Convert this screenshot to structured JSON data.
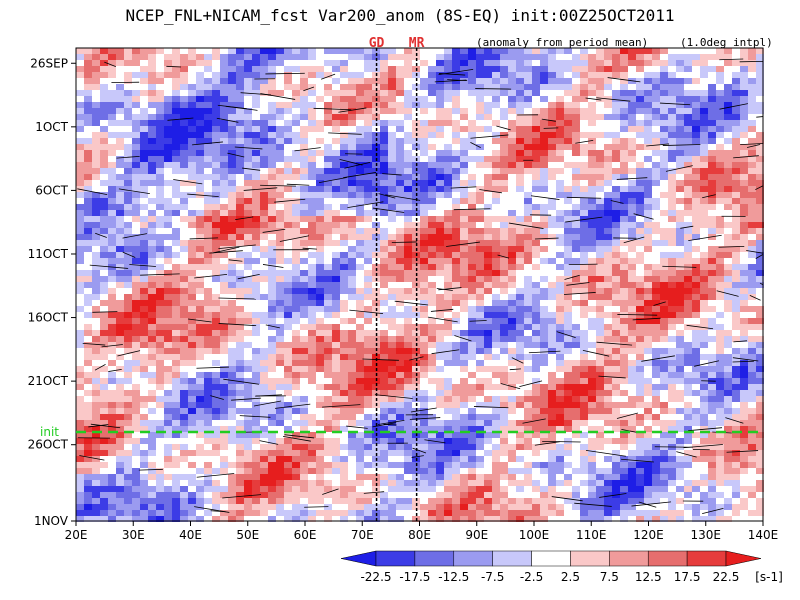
{
  "chart_data": {
    "type": "heatmap",
    "title": "NCEP_FNL+NICAM_fcst Var200_anom (8S-EQ) init:00Z25OCT2011",
    "annotations": {
      "period_note": "(anomaly from period mean)",
      "interp_note": "(1.0deg intpl)",
      "marker_1": "GD",
      "marker_2": "MR",
      "init_label": "init"
    },
    "x_ticks": [
      "20E",
      "30E",
      "40E",
      "50E",
      "60E",
      "70E",
      "80E",
      "90E",
      "100E",
      "110E",
      "120E",
      "130E",
      "140E"
    ],
    "x_values": [
      20,
      30,
      40,
      50,
      60,
      70,
      80,
      90,
      100,
      110,
      120,
      130,
      140
    ],
    "xlim": [
      20,
      140
    ],
    "y_ticks": [
      "26SEP",
      "1OCT",
      "6OCT",
      "11OCT",
      "16OCT",
      "21OCT",
      "26OCT",
      "1NOV"
    ],
    "y_values": [
      0,
      5,
      10,
      15,
      20,
      25,
      30,
      36
    ],
    "ylim": [
      -1.2,
      36
    ],
    "y_axis_note": "days since 26SEP, increasing downward",
    "init_day": 29,
    "marker_lons": [
      72.5,
      79.5
    ],
    "colorbar": {
      "levels": [
        "-22.5",
        "-17.5",
        "-12.5",
        "-7.5",
        "-2.5",
        "2.5",
        "7.5",
        "12.5",
        "17.5",
        "22.5"
      ],
      "unit": "[s-1]",
      "colors": [
        "#1e1ee6",
        "#3c3ce6",
        "#6e6ee6",
        "#9b9bf0",
        "#c8c8fa",
        "#ffffff",
        "#fac8c8",
        "#f09b9b",
        "#e66e6e",
        "#e63c3c",
        "#e61e1e"
      ]
    },
    "grid": false
  }
}
